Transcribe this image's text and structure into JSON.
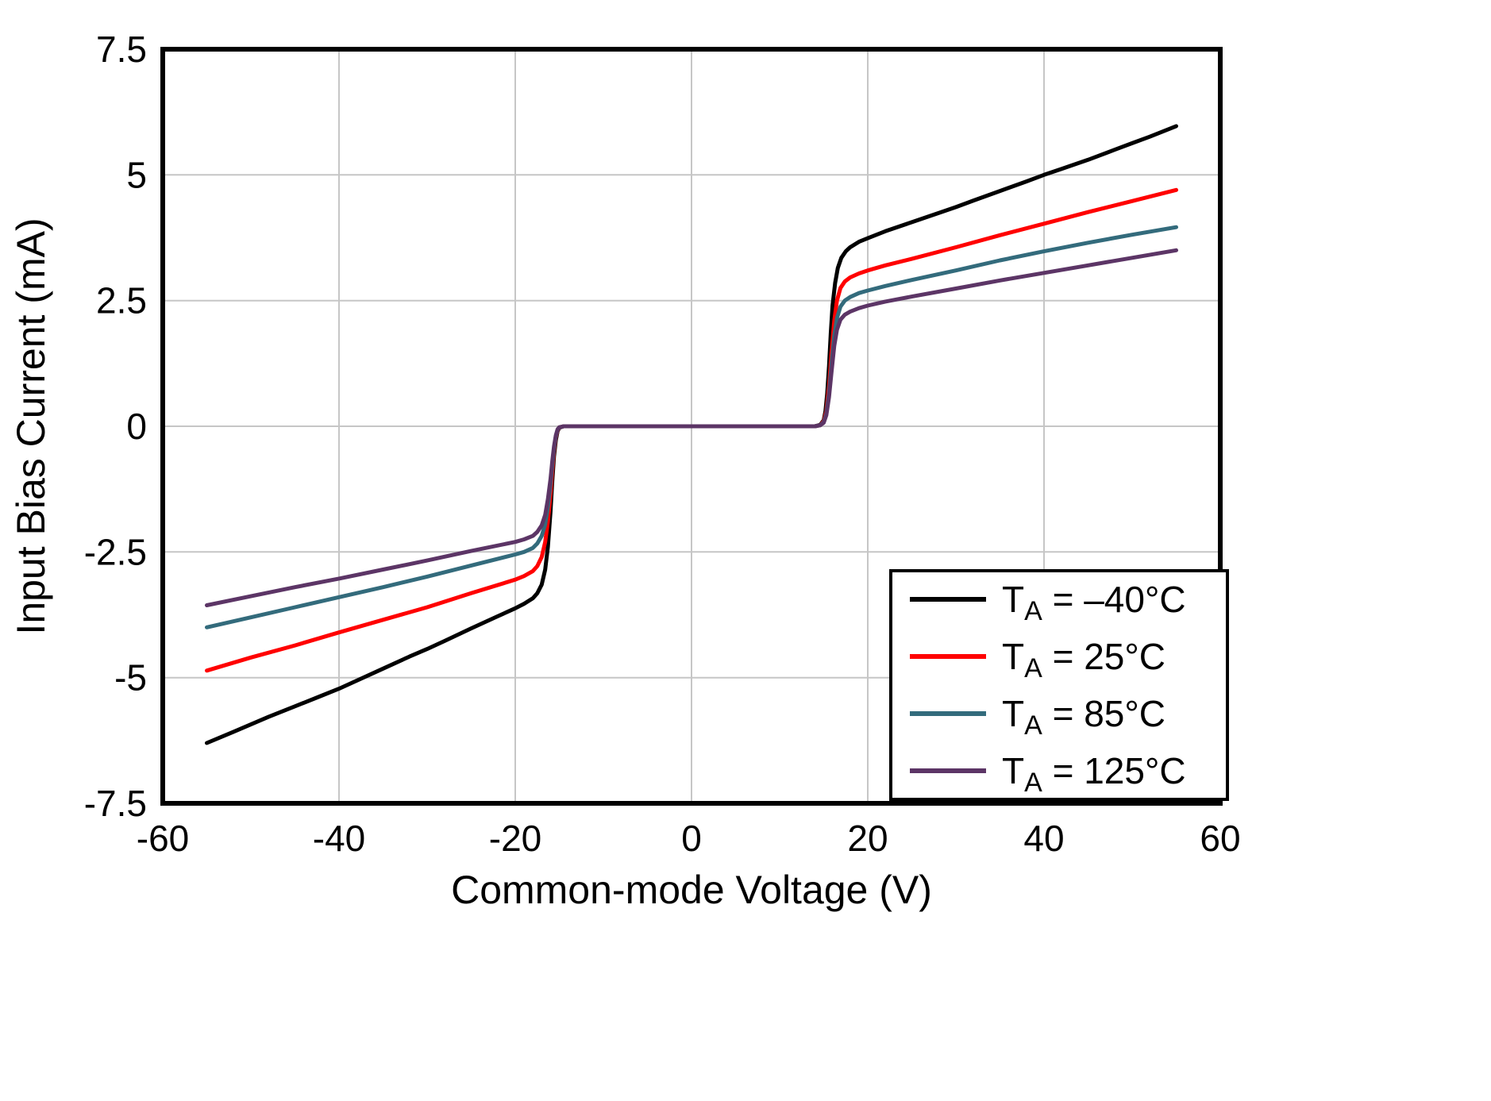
{
  "page": {
    "background": "#ffffff"
  },
  "chart_data": {
    "type": "line",
    "title": "",
    "xlabel": "Common-mode Voltage (V)",
    "ylabel": "Input Bias Current (mA)",
    "xlim": [
      -60,
      60
    ],
    "ylim": [
      -7.5,
      7.5
    ],
    "xticks": [
      -60,
      -40,
      -20,
      0,
      20,
      40,
      60
    ],
    "xtick_labels": [
      "-60",
      "-40",
      "-20",
      "0",
      "20",
      "40",
      "60"
    ],
    "yticks": [
      -7.5,
      -5,
      -2.5,
      0,
      2.5,
      5,
      7.5
    ],
    "ytick_labels": [
      "-7.5",
      "-5",
      "-2.5",
      "0",
      "2.5",
      "5",
      "7.5"
    ],
    "grid": true,
    "grid_color": "#c6c6c6",
    "axis_color": "#000000",
    "legend_position": "bottom-right",
    "series": [
      {
        "id": "ta_minus40",
        "name": "TA = –40°C",
        "legend": {
          "pre": "T",
          "sub": "A",
          "post": " = –40°C"
        },
        "color": "#000000",
        "points": [
          [
            -55,
            -6.3
          ],
          [
            -52,
            -6.08
          ],
          [
            -50,
            -5.93
          ],
          [
            -48,
            -5.78
          ],
          [
            -45,
            -5.57
          ],
          [
            -42,
            -5.36
          ],
          [
            -40,
            -5.22
          ],
          [
            -38,
            -5.06
          ],
          [
            -35,
            -4.82
          ],
          [
            -32,
            -4.58
          ],
          [
            -30,
            -4.43
          ],
          [
            -28,
            -4.27
          ],
          [
            -25,
            -4.02
          ],
          [
            -22,
            -3.78
          ],
          [
            -20,
            -3.62
          ],
          [
            -19,
            -3.53
          ],
          [
            -18,
            -3.42
          ],
          [
            -17.5,
            -3.32
          ],
          [
            -17,
            -3.15
          ],
          [
            -16.6,
            -2.85
          ],
          [
            -16.3,
            -2.4
          ],
          [
            -16,
            -1.7
          ],
          [
            -15.8,
            -1.1
          ],
          [
            -15.6,
            -0.6
          ],
          [
            -15.4,
            -0.28
          ],
          [
            -15.2,
            -0.1
          ],
          [
            -15,
            -0.03
          ],
          [
            -14.5,
            0
          ],
          [
            0,
            0
          ],
          [
            14,
            0
          ],
          [
            14.6,
            0.03
          ],
          [
            15,
            0.12
          ],
          [
            15.2,
            0.3
          ],
          [
            15.4,
            0.65
          ],
          [
            15.6,
            1.2
          ],
          [
            15.8,
            1.85
          ],
          [
            16,
            2.4
          ],
          [
            16.3,
            2.85
          ],
          [
            16.6,
            3.15
          ],
          [
            17,
            3.35
          ],
          [
            17.5,
            3.48
          ],
          [
            18,
            3.56
          ],
          [
            19,
            3.67
          ],
          [
            20,
            3.74
          ],
          [
            22,
            3.88
          ],
          [
            25,
            4.06
          ],
          [
            28,
            4.24
          ],
          [
            30,
            4.36
          ],
          [
            32,
            4.49
          ],
          [
            35,
            4.68
          ],
          [
            38,
            4.87
          ],
          [
            40,
            5.0
          ],
          [
            42,
            5.12
          ],
          [
            45,
            5.3
          ],
          [
            48,
            5.5
          ],
          [
            50,
            5.63
          ],
          [
            52,
            5.76
          ],
          [
            55,
            5.97
          ]
        ]
      },
      {
        "id": "ta_25",
        "name": "TA = 25°C",
        "legend": {
          "pre": "T",
          "sub": "A",
          "post": " = 25°C"
        },
        "color": "#ff0000",
        "points": [
          [
            -55,
            -4.86
          ],
          [
            -50,
            -4.6
          ],
          [
            -45,
            -4.36
          ],
          [
            -40,
            -4.1
          ],
          [
            -35,
            -3.85
          ],
          [
            -30,
            -3.6
          ],
          [
            -25,
            -3.32
          ],
          [
            -20,
            -3.05
          ],
          [
            -19,
            -2.98
          ],
          [
            -18,
            -2.88
          ],
          [
            -17.5,
            -2.78
          ],
          [
            -17,
            -2.6
          ],
          [
            -16.6,
            -2.3
          ],
          [
            -16.3,
            -1.9
          ],
          [
            -16,
            -1.35
          ],
          [
            -15.8,
            -0.9
          ],
          [
            -15.6,
            -0.5
          ],
          [
            -15.4,
            -0.22
          ],
          [
            -15.2,
            -0.08
          ],
          [
            -15,
            -0.02
          ],
          [
            -14.5,
            0
          ],
          [
            14,
            0
          ],
          [
            14.6,
            0.02
          ],
          [
            15,
            0.1
          ],
          [
            15.3,
            0.3
          ],
          [
            15.6,
            0.8
          ],
          [
            15.9,
            1.5
          ],
          [
            16.2,
            2.1
          ],
          [
            16.5,
            2.5
          ],
          [
            16.9,
            2.75
          ],
          [
            17.4,
            2.88
          ],
          [
            18,
            2.96
          ],
          [
            19,
            3.04
          ],
          [
            20,
            3.1
          ],
          [
            22,
            3.2
          ],
          [
            25,
            3.33
          ],
          [
            30,
            3.56
          ],
          [
            35,
            3.8
          ],
          [
            40,
            4.03
          ],
          [
            45,
            4.26
          ],
          [
            50,
            4.48
          ],
          [
            55,
            4.7
          ]
        ]
      },
      {
        "id": "ta_85",
        "name": "TA = 85°C",
        "legend": {
          "pre": "T",
          "sub": "A",
          "post": " = 85°C"
        },
        "color": "#336b7c",
        "points": [
          [
            -55,
            -4.0
          ],
          [
            -50,
            -3.8
          ],
          [
            -45,
            -3.6
          ],
          [
            -40,
            -3.4
          ],
          [
            -35,
            -3.2
          ],
          [
            -30,
            -2.99
          ],
          [
            -25,
            -2.77
          ],
          [
            -20,
            -2.55
          ],
          [
            -19,
            -2.5
          ],
          [
            -18,
            -2.42
          ],
          [
            -17.5,
            -2.33
          ],
          [
            -17,
            -2.18
          ],
          [
            -16.6,
            -1.95
          ],
          [
            -16.3,
            -1.6
          ],
          [
            -16,
            -1.15
          ],
          [
            -15.8,
            -0.78
          ],
          [
            -15.6,
            -0.45
          ],
          [
            -15.4,
            -0.2
          ],
          [
            -15.2,
            -0.07
          ],
          [
            -15,
            -0.02
          ],
          [
            -14.5,
            0
          ],
          [
            14,
            0
          ],
          [
            14.6,
            0.02
          ],
          [
            15,
            0.08
          ],
          [
            15.3,
            0.25
          ],
          [
            15.6,
            0.65
          ],
          [
            15.9,
            1.25
          ],
          [
            16.2,
            1.8
          ],
          [
            16.5,
            2.15
          ],
          [
            16.9,
            2.38
          ],
          [
            17.4,
            2.5
          ],
          [
            18,
            2.57
          ],
          [
            19,
            2.65
          ],
          [
            20,
            2.7
          ],
          [
            22,
            2.79
          ],
          [
            25,
            2.91
          ],
          [
            30,
            3.1
          ],
          [
            35,
            3.3
          ],
          [
            40,
            3.48
          ],
          [
            45,
            3.65
          ],
          [
            50,
            3.81
          ],
          [
            55,
            3.96
          ]
        ]
      },
      {
        "id": "ta_125",
        "name": "TA = 125°C",
        "legend": {
          "pre": "T",
          "sub": "A",
          "post": " = 125°C"
        },
        "color": "#5c3566",
        "points": [
          [
            -55,
            -3.56
          ],
          [
            -50,
            -3.38
          ],
          [
            -45,
            -3.2
          ],
          [
            -40,
            -3.03
          ],
          [
            -35,
            -2.85
          ],
          [
            -30,
            -2.67
          ],
          [
            -25,
            -2.48
          ],
          [
            -20,
            -2.3
          ],
          [
            -19,
            -2.25
          ],
          [
            -18,
            -2.18
          ],
          [
            -17.5,
            -2.1
          ],
          [
            -17,
            -1.97
          ],
          [
            -16.6,
            -1.76
          ],
          [
            -16.3,
            -1.45
          ],
          [
            -16,
            -1.05
          ],
          [
            -15.8,
            -0.7
          ],
          [
            -15.6,
            -0.4
          ],
          [
            -15.4,
            -0.18
          ],
          [
            -15.2,
            -0.06
          ],
          [
            -15,
            -0.02
          ],
          [
            -14.5,
            0
          ],
          [
            14,
            0
          ],
          [
            14.6,
            0.02
          ],
          [
            15,
            0.07
          ],
          [
            15.3,
            0.22
          ],
          [
            15.6,
            0.58
          ],
          [
            15.9,
            1.1
          ],
          [
            16.2,
            1.6
          ],
          [
            16.5,
            1.92
          ],
          [
            16.9,
            2.12
          ],
          [
            17.4,
            2.22
          ],
          [
            18,
            2.28
          ],
          [
            19,
            2.35
          ],
          [
            20,
            2.4
          ],
          [
            22,
            2.48
          ],
          [
            25,
            2.58
          ],
          [
            30,
            2.74
          ],
          [
            35,
            2.9
          ],
          [
            40,
            3.05
          ],
          [
            45,
            3.2
          ],
          [
            50,
            3.35
          ],
          [
            55,
            3.5
          ]
        ]
      }
    ]
  }
}
